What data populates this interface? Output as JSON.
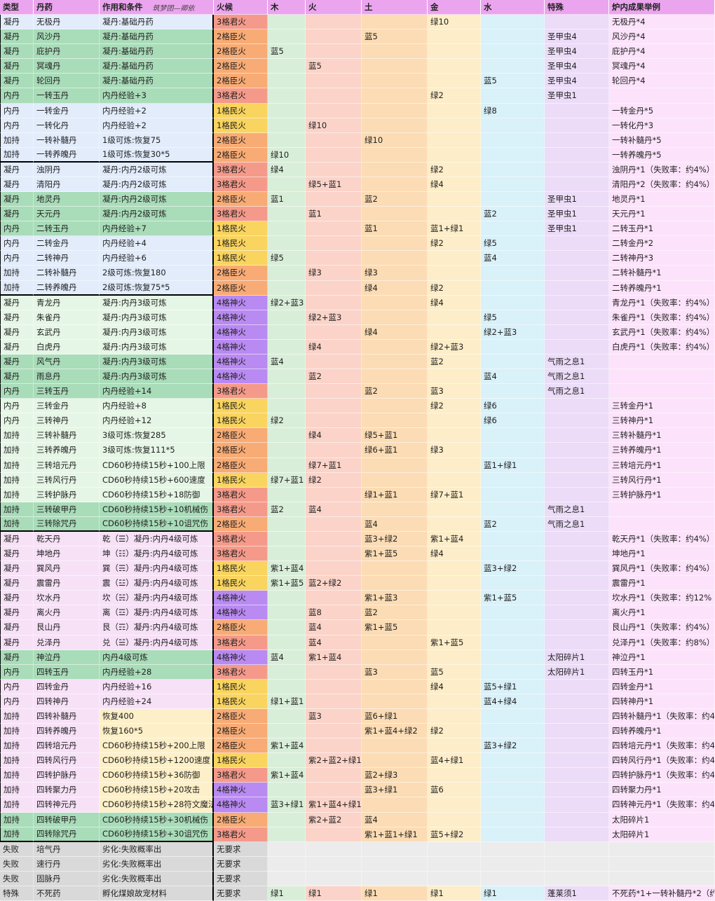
{
  "header": {
    "columns": [
      "类型",
      "丹药",
      "作用和条件",
      "火候",
      "木",
      "火",
      "土",
      "金",
      "水",
      "特殊",
      "炉内成果举例"
    ],
    "note": "筑梦团—卿依"
  },
  "table": {
    "rows": [
      [
        "凝丹",
        "无极丹",
        "凝丹:基础丹药",
        "3格君火",
        null,
        null,
        null,
        "绿10",
        null,
        null,
        "无极丹*4"
      ],
      [
        "凝丹",
        "风沙丹",
        "凝丹:基础丹药",
        "2格臣火",
        null,
        null,
        "蓝5",
        null,
        null,
        "圣甲虫4",
        "风沙丹*4"
      ],
      [
        "凝丹",
        "庇护丹",
        "凝丹:基础丹药",
        "2格臣火",
        "蓝5",
        null,
        null,
        null,
        null,
        "圣甲虫4",
        "庇护丹*4"
      ],
      [
        "凝丹",
        "冥魂丹",
        "凝丹:基础丹药",
        "2格臣火",
        null,
        "蓝5",
        null,
        null,
        null,
        "圣甲虫4",
        "冥魂丹*4"
      ],
      [
        "凝丹",
        "轮回丹",
        "凝丹:基础丹药",
        "2格臣火",
        null,
        null,
        null,
        null,
        "蓝5",
        "圣甲虫4",
        "轮回丹*4"
      ],
      [
        "内丹",
        "一转玉丹",
        "内丹经验+3",
        "3格君火",
        null,
        null,
        null,
        "绿2",
        null,
        "圣甲虫1",
        null
      ],
      [
        "内丹",
        "一转金丹",
        "内丹经验+2",
        "1格民火",
        null,
        null,
        null,
        null,
        "绿8",
        null,
        "一转金丹*5"
      ],
      [
        "内丹",
        "一转化丹",
        "内丹经验+2",
        "1格民火",
        null,
        "绿10",
        null,
        null,
        null,
        null,
        "一转化丹*3"
      ],
      [
        "加持",
        "一转补髓丹",
        "1级可炼:恢复75",
        "2格臣火",
        null,
        null,
        "绿10",
        null,
        null,
        null,
        "一转补髓丹*5"
      ],
      [
        "加持",
        "一转养魄丹",
        "1级可炼:恢复30*5",
        "2格臣火",
        "绿10",
        null,
        null,
        null,
        null,
        null,
        "一转养魄丹*5"
      ],
      [
        "凝丹",
        "浊阴丹",
        "凝丹:内丹2级可炼",
        "3格君火",
        "绿4",
        null,
        null,
        "绿2",
        null,
        null,
        "浊阴丹*1（失败率：约4%）"
      ],
      [
        "凝丹",
        "清阳丹",
        "凝丹:内丹2级可炼",
        "3格君火",
        null,
        "绿5+蓝1",
        null,
        "绿4",
        null,
        null,
        "清阳丹*2（失败率：约4%）"
      ],
      [
        "凝丹",
        "地灵丹",
        "凝丹:内丹2级可炼",
        "2格臣火",
        "蓝1",
        null,
        "蓝2",
        null,
        null,
        "圣甲虫1",
        "地灵丹*1"
      ],
      [
        "凝丹",
        "天元丹",
        "凝丹:内丹2级可炼",
        "3格君火",
        null,
        "蓝1",
        null,
        null,
        "蓝2",
        "圣甲虫1",
        "天元丹*1"
      ],
      [
        "内丹",
        "二转玉丹",
        "内丹经验+7",
        "1格民火",
        null,
        null,
        "蓝1",
        "蓝1+绿1",
        null,
        "圣甲虫1",
        "二转玉丹*1"
      ],
      [
        "内丹",
        "二转金丹",
        "内丹经验+4",
        "1格民火",
        null,
        null,
        null,
        "绿2",
        "绿5",
        null,
        "二转金丹*2"
      ],
      [
        "内丹",
        "二转神丹",
        "内丹经验+6",
        "1格民火",
        "绿5",
        null,
        null,
        null,
        "蓝4",
        null,
        "二转神丹*3"
      ],
      [
        "加持",
        "二转补髓丹",
        "2级可炼:恢复180",
        "2格臣火",
        null,
        "绿3",
        "绿3",
        null,
        null,
        null,
        "二转补髓丹*1"
      ],
      [
        "加持",
        "二转养魄丹",
        "2级可炼:恢复75*5",
        "2格臣火",
        null,
        null,
        "绿4",
        "绿2",
        null,
        null,
        "二转养魄丹*1"
      ],
      [
        "凝丹",
        "青龙丹",
        "凝丹:内丹3级可炼",
        "4格神火",
        "绿2+蓝3",
        null,
        null,
        "绿4",
        null,
        null,
        "青龙丹*1（失败率：约4%）"
      ],
      [
        "凝丹",
        "朱雀丹",
        "凝丹:内丹3级可炼",
        "4格神火",
        null,
        "绿2+蓝3",
        null,
        null,
        "绿5",
        null,
        "朱雀丹*1（失败率：约4%）"
      ],
      [
        "凝丹",
        "玄武丹",
        "凝丹:内丹3级可炼",
        "4格神火",
        null,
        null,
        "绿4",
        null,
        "绿2+蓝3",
        null,
        "玄武丹*1（失败率：约4%）"
      ],
      [
        "凝丹",
        "白虎丹",
        "凝丹:内丹3级可炼",
        "4格神火",
        null,
        "绿4",
        null,
        "绿2+蓝3",
        null,
        null,
        "白虎丹*1（失败率：约4%）"
      ],
      [
        "凝丹",
        "风气丹",
        "凝丹:内丹3级可炼",
        "4格神火",
        "蓝4",
        null,
        null,
        "蓝2",
        null,
        "气雨之息1",
        null
      ],
      [
        "凝丹",
        "雨息丹",
        "凝丹:内丹3级可炼",
        "4格神火",
        null,
        "蓝2",
        null,
        null,
        "蓝4",
        "气雨之息1",
        null
      ],
      [
        "内丹",
        "三转玉丹",
        "内丹经验+14",
        "3格君火",
        null,
        null,
        "蓝2",
        "蓝3",
        null,
        "气雨之息1",
        null
      ],
      [
        "内丹",
        "三转金丹",
        "内丹经验+8",
        "1格民火",
        null,
        null,
        null,
        "绿2",
        "绿6",
        null,
        "三转金丹*1"
      ],
      [
        "内丹",
        "三转神丹",
        "内丹经验+12",
        "1格民火",
        "绿2",
        null,
        null,
        null,
        "绿6",
        null,
        "三转神丹*1"
      ],
      [
        "加持",
        "三转补髓丹",
        "3级可炼:恢复285",
        "2格臣火",
        null,
        "绿4",
        "绿5+蓝1",
        null,
        null,
        null,
        "三转补髓丹*1"
      ],
      [
        "加持",
        "三转养魄丹",
        "3级可炼:恢复111*5",
        "2格臣火",
        null,
        null,
        "绿6+蓝1",
        "绿3",
        null,
        null,
        "三转养魄丹*1"
      ],
      [
        "加持",
        "三转培元丹",
        "CD60秒持续15秒+100上限",
        "2格臣火",
        null,
        "绿7+蓝1",
        null,
        null,
        "蓝1+绿1",
        null,
        "三转培元丹*1"
      ],
      [
        "加持",
        "三转风行丹",
        "CD60秒持续15秒+600速度",
        "1格民火",
        "绿7+蓝1",
        "绿2",
        null,
        null,
        null,
        null,
        "三转风行丹*1"
      ],
      [
        "加持",
        "三转护脉丹",
        "CD60秒持续15秒+18防御",
        "3格君火",
        null,
        null,
        "绿1+蓝1",
        "绿7+蓝1",
        null,
        null,
        "三转护脉丹*1"
      ],
      [
        "加持",
        "三转破甲丹",
        "CD60秒持续15秒+10机械伤",
        "3格君火",
        "蓝2",
        "蓝4",
        null,
        null,
        null,
        "气雨之息1",
        null
      ],
      [
        "加持",
        "三转除咒丹",
        "CD60秒持续15秒+10诅咒伤",
        "2格臣火",
        null,
        null,
        "蓝4",
        null,
        "蓝2",
        "气雨之息1",
        null
      ],
      [
        "凝丹",
        "乾天丹",
        "乾（☰）凝丹:内丹4级可炼",
        "3格君火",
        null,
        null,
        "蓝3+绿2",
        "紫1+蓝4",
        null,
        null,
        "乾天丹*1（失败率：约4%）"
      ],
      [
        "凝丹",
        "坤地丹",
        "坤（☷）凝丹:内丹4级可炼",
        "3格君火",
        null,
        null,
        "紫1+蓝5",
        "绿4",
        null,
        null,
        "坤地丹*1"
      ],
      [
        "凝丹",
        "巽风丹",
        "巽（☴）凝丹:内丹4级可炼",
        "1格民火",
        "紫1+蓝4",
        null,
        null,
        null,
        "蓝3+绿2",
        null,
        "巽风丹*1（失败率：约4%）"
      ],
      [
        "凝丹",
        "震雷丹",
        "震（☳）凝丹:内丹4级可炼",
        "1格民火",
        "紫1+蓝5",
        "蓝2+绿2",
        null,
        null,
        null,
        null,
        "震雷丹*1"
      ],
      [
        "凝丹",
        "坎水丹",
        "坎（☵）凝丹:内丹4级可炼",
        "4格神火",
        null,
        null,
        "紫1+蓝3",
        null,
        "紫1+蓝5",
        null,
        "坎水丹*1（失败率：约12%"
      ],
      [
        "凝丹",
        "离火丹",
        "离（☲）凝丹:内丹4级可炼",
        "4格神火",
        null,
        "蓝8",
        "蓝2",
        null,
        null,
        null,
        "离火丹*1"
      ],
      [
        "凝丹",
        "艮山丹",
        "艮（☶）凝丹:内丹4级可炼",
        "2格臣火",
        null,
        "蓝4",
        "紫1+蓝5",
        null,
        null,
        null,
        "艮山丹*1（失败率：约4%）"
      ],
      [
        "凝丹",
        "兑泽丹",
        "兑（☱）凝丹:内丹4级可炼",
        "3格君火",
        null,
        "蓝4",
        null,
        "紫1+蓝5",
        null,
        null,
        "兑泽丹*1（失败率：约8%）"
      ],
      [
        "凝丹",
        "神泣丹",
        "内丹4级可炼",
        "4格神火",
        "蓝4",
        "紫1+蓝4",
        null,
        null,
        null,
        "太阳碎片1",
        "神泣丹*1"
      ],
      [
        "内丹",
        "四转玉丹",
        "内丹经验+28",
        "3格君火",
        null,
        null,
        "蓝3",
        "蓝5",
        null,
        "太阳碎片1",
        "四转玉丹*1"
      ],
      [
        "内丹",
        "四转金丹",
        "内丹经验+16",
        "1格民火",
        null,
        null,
        null,
        "绿4",
        "蓝5+绿1",
        null,
        "四转金丹*1"
      ],
      [
        "内丹",
        "四转神丹",
        "内丹经验+24",
        "1格民火",
        "绿1+蓝1",
        null,
        null,
        null,
        "蓝4+绿4",
        null,
        "四转神丹*1"
      ],
      [
        "加持",
        "四转补髓丹",
        "恢复400",
        "2格臣火",
        null,
        "蓝3",
        "蓝6+绿1",
        null,
        null,
        null,
        "四转补髓丹*1（失败率：约4"
      ],
      [
        "加持",
        "四转养魄丹",
        "恢复160*5",
        "2格臣火",
        null,
        null,
        "紫1+蓝4+绿2",
        "绿2",
        null,
        null,
        "四转养魄丹*1"
      ],
      [
        "加持",
        "四转培元丹",
        "CD60秒持续15秒+200上限",
        "2格臣火",
        "紫1+蓝4",
        null,
        null,
        null,
        "蓝3+绿2",
        null,
        "四转培元丹*1（失败率：约4"
      ],
      [
        "加持",
        "四转风行丹",
        "CD60秒持续15秒+1200速度",
        "1格民火",
        null,
        "紫2+蓝2+绿1",
        null,
        "蓝4+绿1",
        null,
        null,
        "四转风行丹*1（失败率：约4"
      ],
      [
        "加持",
        "四转护脉丹",
        "CD60秒持续15秒+36防御",
        "3格君火",
        "紫1+蓝4",
        null,
        "蓝2+绿3",
        null,
        null,
        null,
        "四转护脉丹*1（失败率：约4"
      ],
      [
        "加持",
        "四转聚力丹",
        "CD60秒持续15秒+20攻击",
        "4格神火",
        null,
        null,
        "蓝3+绿1",
        "蓝6",
        null,
        null,
        "四转聚力丹*1"
      ],
      [
        "加持",
        "四转神元丹",
        "CD60秒持续15秒+28符文魔法",
        "4格神火",
        "蓝3+绿1",
        "紫1+蓝4+绿1",
        null,
        null,
        null,
        null,
        "四转神元丹*1（失败率：约4"
      ],
      [
        "加持",
        "四转破甲丹",
        "CD60秒持续15秒+30机械伤",
        "2格臣火",
        null,
        "紫2+蓝2",
        "蓝4",
        null,
        null,
        null,
        "太阳碎片1"
      ],
      [
        "加持",
        "四转除咒丹",
        "CD60秒持续15秒+30诅咒伤",
        "3格君火",
        null,
        null,
        "紫1+蓝1+绿1",
        "蓝5+绿2",
        null,
        null,
        "太阳碎片1"
      ],
      [
        "失败",
        "培气丹",
        "劣化:失败概率出",
        "无要求",
        null,
        null,
        null,
        null,
        null,
        null,
        null
      ],
      [
        "失败",
        "速行丹",
        "劣化:失败概率出",
        "无要求",
        null,
        null,
        null,
        null,
        null,
        null,
        null
      ],
      [
        "失败",
        "固脉丹",
        "劣化:失败概率出",
        "无要求",
        null,
        null,
        null,
        null,
        null,
        null,
        null
      ],
      [
        "特殊",
        "不死药",
        "孵化煤娘故宠材料",
        "无要求",
        "绿1",
        "绿1",
        "绿1",
        "绿1",
        "绿1",
        "蓬莱须1",
        "不死药*1+一转补髓丹*2（约2"
      ]
    ]
  }
}
